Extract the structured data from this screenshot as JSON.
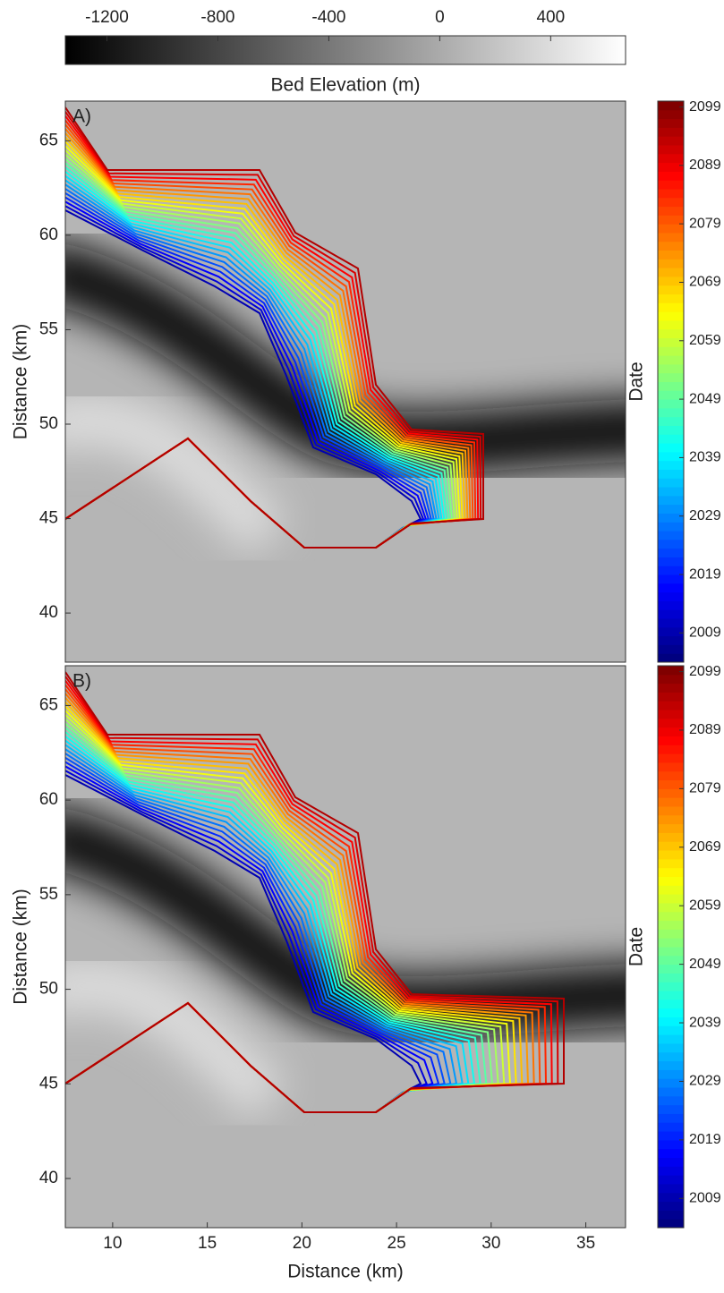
{
  "colorbar": {
    "label": "Bed Elevation (m)",
    "lim": [
      -1350,
      670
    ],
    "ticks": [
      -1200,
      -800,
      -400,
      0,
      400
    ],
    "colormap": "gray"
  },
  "chart_data": [
    {
      "type": "contour",
      "panel_label": "A)",
      "ylabel": "Distance (km)",
      "xlim": [
        7.5,
        37.1
      ],
      "ylim": [
        37.4,
        67.1
      ],
      "yticks": [
        40,
        45,
        50,
        55,
        60,
        65
      ],
      "colorbar": {
        "label": "Date",
        "lim": [
          2004,
          2100
        ],
        "ticks": [
          2009,
          2019,
          2029,
          2039,
          2049,
          2059,
          2069,
          2079,
          2089,
          2099
        ],
        "colormap": "jet"
      }
    },
    {
      "type": "contour",
      "panel_label": "B)",
      "ylabel": "Distance (km)",
      "xlabel": "Distance (km)",
      "xlim": [
        7.5,
        37.1
      ],
      "ylim": [
        37.4,
        67.1
      ],
      "yticks": [
        40,
        45,
        50,
        55,
        60,
        65
      ],
      "xticks": [
        10,
        15,
        20,
        25,
        30,
        35
      ],
      "colorbar": {
        "label": "Date",
        "lim": [
          2004,
          2100
        ],
        "ticks": [
          2009,
          2019,
          2029,
          2039,
          2049,
          2059,
          2069,
          2079,
          2089,
          2099
        ],
        "colormap": "jet"
      }
    }
  ]
}
